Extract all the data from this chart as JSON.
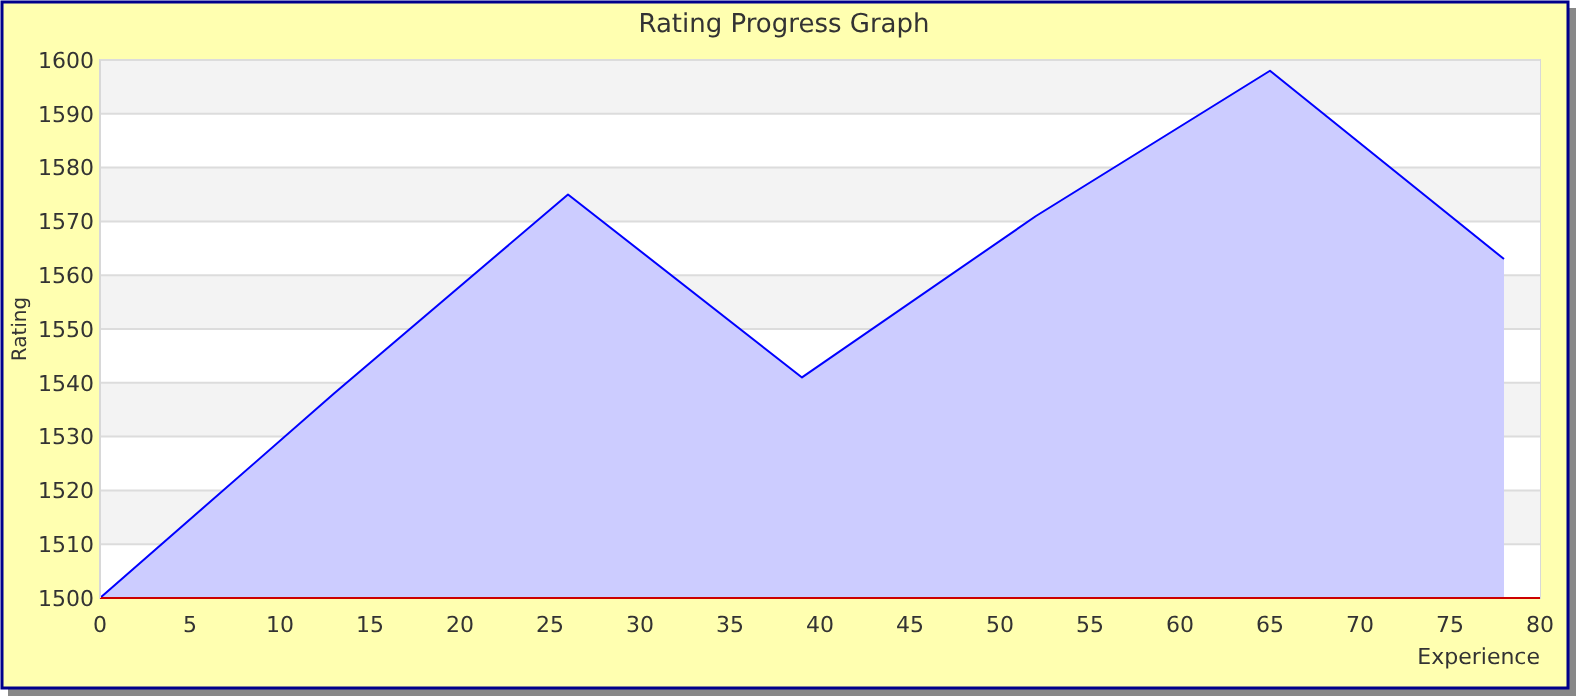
{
  "chart_data": {
    "type": "area",
    "title": "Rating Progress Graph",
    "xlabel": "Experience",
    "ylabel": "Rating",
    "x": [
      0,
      13,
      26,
      39,
      52,
      65,
      78
    ],
    "series": [
      {
        "color": "#0000ff",
        "values": [
          1500,
          1538,
          1575,
          1541,
          1571,
          1598,
          1563
        ]
      }
    ],
    "xlim": [
      0,
      80
    ],
    "xticks": [
      0,
      5,
      10,
      15,
      20,
      25,
      30,
      35,
      40,
      45,
      50,
      55,
      60,
      65,
      70,
      75,
      80
    ],
    "ylim": [
      1500,
      1600
    ],
    "yticks": [
      1500,
      1510,
      1520,
      1530,
      1540,
      1550,
      1560,
      1570,
      1580,
      1590,
      1600
    ],
    "grid": "y"
  }
}
